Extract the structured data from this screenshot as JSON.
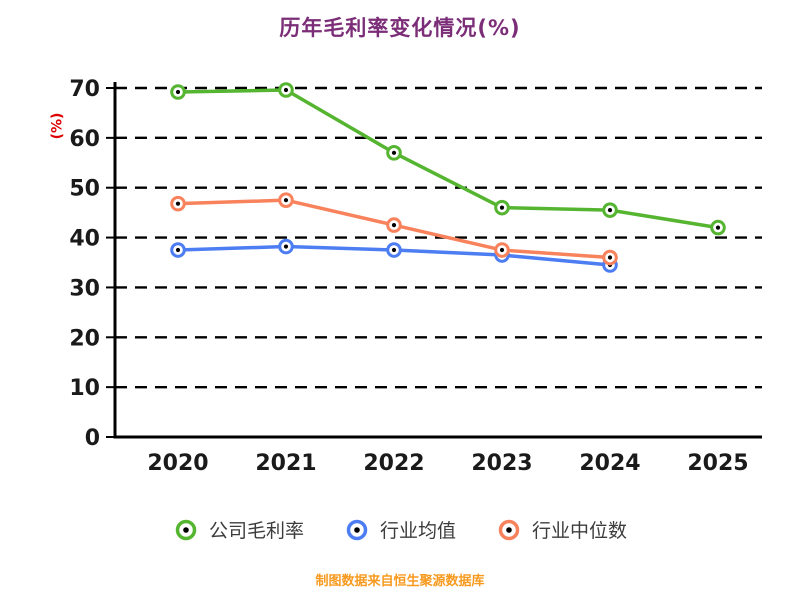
{
  "page": {
    "background": "#ffffff"
  },
  "source_note": "制图数据来自恒生聚源数据库",
  "colors": {
    "title": "#7b2d78",
    "ylabel": "#dd0000",
    "source_note": "#f79a1f",
    "axis": "#000000",
    "gridline": "#000000",
    "tick_label": "#1a1a1a",
    "legend_text": "#3c3c3c",
    "marker_center": "#000000",
    "marker_fill": "#ffffff"
  },
  "chart_data": {
    "type": "line",
    "title": "历年毛利率变化情况(%)",
    "xlabel": "",
    "ylabel": "(%)",
    "categories": [
      "2020",
      "2021",
      "2022",
      "2023",
      "2024",
      "2025"
    ],
    "ylim": [
      0,
      70
    ],
    "ytick_step": 10,
    "grid": "dashed-horizontal",
    "legend_position": "bottom",
    "series": [
      {
        "name": "公司毛利率",
        "color": "#55b531",
        "values": [
          69.2,
          69.6,
          57,
          46,
          45.5,
          42
        ]
      },
      {
        "name": "行业均值",
        "color": "#4d7df2",
        "values": [
          37.5,
          38.2,
          37.5,
          36.5,
          34.5,
          null
        ]
      },
      {
        "name": "行业中位数",
        "color": "#f8825c",
        "values": [
          46.8,
          47.5,
          42.5,
          37.5,
          36,
          null
        ]
      }
    ]
  }
}
